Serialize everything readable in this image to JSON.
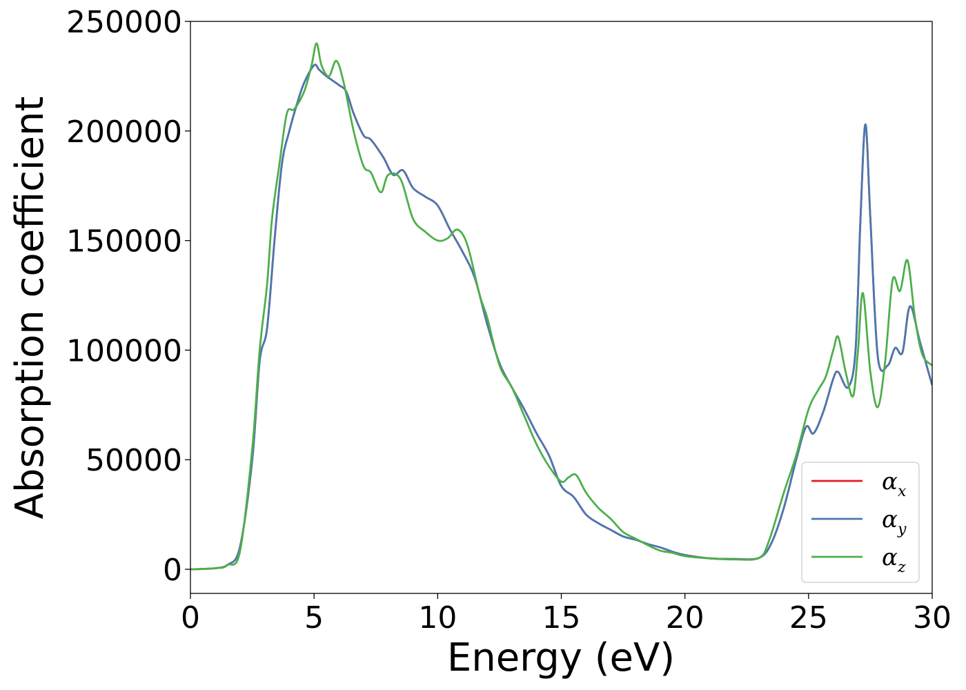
{
  "chart_data": {
    "type": "line",
    "title": "",
    "xlabel": "Energy (eV)",
    "ylabel": "Absorption coefficient",
    "xlim": [
      0,
      30
    ],
    "ylim": [
      -11000,
      250000
    ],
    "xticks": [
      0,
      5,
      10,
      15,
      20,
      25,
      30
    ],
    "yticks": [
      0,
      50000,
      100000,
      150000,
      200000,
      250000
    ],
    "grid": false,
    "legend_position": "lower-right",
    "series": [
      {
        "name": "α_x",
        "legend_symbol": "α",
        "legend_subscript": "x",
        "color": "#e41a1c",
        "points": [
          [
            0,
            0
          ],
          [
            1,
            500
          ],
          [
            1.5,
            2000
          ],
          [
            2,
            10000
          ],
          [
            2.5,
            50000
          ],
          [
            2.8,
            95000
          ],
          [
            3.1,
            110000
          ],
          [
            3.4,
            150000
          ],
          [
            3.7,
            185000
          ],
          [
            4,
            200000
          ],
          [
            4.3,
            212000
          ],
          [
            4.6,
            222000
          ],
          [
            5,
            230000
          ],
          [
            5.2,
            228000
          ],
          [
            5.5,
            225000
          ],
          [
            6,
            221000
          ],
          [
            6.3,
            218000
          ],
          [
            6.6,
            208000
          ],
          [
            7,
            198000
          ],
          [
            7.3,
            196000
          ],
          [
            7.8,
            188000
          ],
          [
            8.2,
            180000
          ],
          [
            8.6,
            182000
          ],
          [
            9,
            174000
          ],
          [
            9.5,
            170000
          ],
          [
            10,
            166000
          ],
          [
            10.5,
            155000
          ],
          [
            11,
            145000
          ],
          [
            11.5,
            133000
          ],
          [
            12,
            112000
          ],
          [
            12.5,
            94000
          ],
          [
            13,
            83000
          ],
          [
            13.5,
            73000
          ],
          [
            14,
            62000
          ],
          [
            14.5,
            52000
          ],
          [
            15,
            38000
          ],
          [
            15.5,
            33000
          ],
          [
            16,
            25000
          ],
          [
            16.5,
            21000
          ],
          [
            17,
            18000
          ],
          [
            17.5,
            15000
          ],
          [
            18,
            13500
          ],
          [
            18.5,
            11500
          ],
          [
            19,
            10000
          ],
          [
            19.5,
            8000
          ],
          [
            20,
            6500
          ],
          [
            21,
            5000
          ],
          [
            22,
            4700
          ],
          [
            23,
            5200
          ],
          [
            23.5,
            12000
          ],
          [
            24,
            28000
          ],
          [
            24.5,
            50000
          ],
          [
            24.9,
            65000
          ],
          [
            25.2,
            62000
          ],
          [
            25.6,
            72000
          ],
          [
            26,
            87000
          ],
          [
            26.2,
            90000
          ],
          [
            26.6,
            83000
          ],
          [
            26.9,
            100000
          ],
          [
            27.1,
            160000
          ],
          [
            27.3,
            203000
          ],
          [
            27.5,
            160000
          ],
          [
            27.8,
            97000
          ],
          [
            28.2,
            93000
          ],
          [
            28.5,
            101000
          ],
          [
            28.8,
            99000
          ],
          [
            29.1,
            120000
          ],
          [
            29.5,
            104000
          ],
          [
            30,
            84000
          ]
        ]
      },
      {
        "name": "α_y",
        "legend_symbol": "α",
        "legend_subscript": "y",
        "color": "#4a78b0",
        "points": [
          [
            0,
            0
          ],
          [
            1,
            500
          ],
          [
            1.5,
            2000
          ],
          [
            2,
            10000
          ],
          [
            2.5,
            50000
          ],
          [
            2.8,
            95000
          ],
          [
            3.1,
            110000
          ],
          [
            3.4,
            150000
          ],
          [
            3.7,
            185000
          ],
          [
            4,
            200000
          ],
          [
            4.3,
            212000
          ],
          [
            4.6,
            222000
          ],
          [
            5,
            230000
          ],
          [
            5.2,
            228000
          ],
          [
            5.5,
            225000
          ],
          [
            6,
            221000
          ],
          [
            6.3,
            218000
          ],
          [
            6.6,
            208000
          ],
          [
            7,
            198000
          ],
          [
            7.3,
            196000
          ],
          [
            7.8,
            188000
          ],
          [
            8.2,
            180000
          ],
          [
            8.6,
            182000
          ],
          [
            9,
            174000
          ],
          [
            9.5,
            170000
          ],
          [
            10,
            166000
          ],
          [
            10.5,
            155000
          ],
          [
            11,
            145000
          ],
          [
            11.5,
            133000
          ],
          [
            12,
            112000
          ],
          [
            12.5,
            94000
          ],
          [
            13,
            83000
          ],
          [
            13.5,
            73000
          ],
          [
            14,
            62000
          ],
          [
            14.5,
            52000
          ],
          [
            15,
            38000
          ],
          [
            15.5,
            33000
          ],
          [
            16,
            25000
          ],
          [
            16.5,
            21000
          ],
          [
            17,
            18000
          ],
          [
            17.5,
            15000
          ],
          [
            18,
            13500
          ],
          [
            18.5,
            11500
          ],
          [
            19,
            10000
          ],
          [
            19.5,
            8000
          ],
          [
            20,
            6500
          ],
          [
            21,
            5000
          ],
          [
            22,
            4700
          ],
          [
            23,
            5200
          ],
          [
            23.5,
            12000
          ],
          [
            24,
            28000
          ],
          [
            24.5,
            50000
          ],
          [
            24.9,
            65000
          ],
          [
            25.2,
            62000
          ],
          [
            25.6,
            72000
          ],
          [
            26,
            87000
          ],
          [
            26.2,
            90000
          ],
          [
            26.6,
            83000
          ],
          [
            26.9,
            100000
          ],
          [
            27.1,
            160000
          ],
          [
            27.3,
            203000
          ],
          [
            27.5,
            160000
          ],
          [
            27.8,
            97000
          ],
          [
            28.2,
            93000
          ],
          [
            28.5,
            101000
          ],
          [
            28.8,
            99000
          ],
          [
            29.1,
            120000
          ],
          [
            29.5,
            104000
          ],
          [
            30,
            84000
          ]
        ]
      },
      {
        "name": "α_z",
        "legend_symbol": "α",
        "legend_subscript": "z",
        "color": "#4daf4a",
        "points": [
          [
            0,
            0
          ],
          [
            1,
            500
          ],
          [
            1.5,
            2000
          ],
          [
            2,
            8000
          ],
          [
            2.5,
            55000
          ],
          [
            2.8,
            100000
          ],
          [
            3.1,
            130000
          ],
          [
            3.3,
            160000
          ],
          [
            3.6,
            185000
          ],
          [
            3.9,
            208000
          ],
          [
            4.2,
            210000
          ],
          [
            4.6,
            218000
          ],
          [
            4.9,
            230000
          ],
          [
            5.1,
            240000
          ],
          [
            5.3,
            230000
          ],
          [
            5.6,
            225000
          ],
          [
            5.9,
            232000
          ],
          [
            6.2,
            222000
          ],
          [
            6.6,
            200000
          ],
          [
            7,
            184000
          ],
          [
            7.3,
            181000
          ],
          [
            7.7,
            172000
          ],
          [
            8,
            180000
          ],
          [
            8.5,
            178000
          ],
          [
            9,
            160000
          ],
          [
            9.5,
            154000
          ],
          [
            10,
            150000
          ],
          [
            10.4,
            151000
          ],
          [
            10.8,
            155000
          ],
          [
            11.2,
            148000
          ],
          [
            11.7,
            125000
          ],
          [
            12,
            115000
          ],
          [
            12.5,
            93000
          ],
          [
            13,
            83000
          ],
          [
            13.5,
            70000
          ],
          [
            14,
            57000
          ],
          [
            14.5,
            47000
          ],
          [
            15,
            40000
          ],
          [
            15.3,
            42000
          ],
          [
            15.6,
            43000
          ],
          [
            16,
            35000
          ],
          [
            16.5,
            28000
          ],
          [
            17,
            23000
          ],
          [
            17.5,
            17000
          ],
          [
            18,
            14000
          ],
          [
            18.5,
            11000
          ],
          [
            19,
            8500
          ],
          [
            19.5,
            7500
          ],
          [
            20,
            6000
          ],
          [
            21,
            5000
          ],
          [
            22,
            4500
          ],
          [
            23,
            5200
          ],
          [
            23.4,
            13000
          ],
          [
            24,
            35000
          ],
          [
            24.5,
            52000
          ],
          [
            25,
            73000
          ],
          [
            25.4,
            82000
          ],
          [
            25.7,
            88000
          ],
          [
            26,
            100000
          ],
          [
            26.2,
            106000
          ],
          [
            26.5,
            90000
          ],
          [
            26.8,
            79000
          ],
          [
            27,
            100000
          ],
          [
            27.2,
            126000
          ],
          [
            27.5,
            90000
          ],
          [
            27.8,
            74000
          ],
          [
            28.1,
            95000
          ],
          [
            28.4,
            132000
          ],
          [
            28.7,
            127000
          ],
          [
            29,
            141000
          ],
          [
            29.3,
            115000
          ],
          [
            29.6,
            98000
          ],
          [
            30,
            93000
          ]
        ]
      }
    ]
  }
}
